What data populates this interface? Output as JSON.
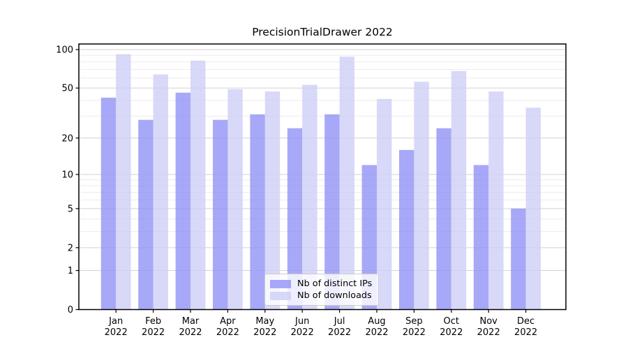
{
  "chart_data": {
    "type": "bar",
    "title": "PrecisionTrialDrawer 2022",
    "categories": [
      {
        "month": "Jan",
        "year": "2022"
      },
      {
        "month": "Feb",
        "year": "2022"
      },
      {
        "month": "Mar",
        "year": "2022"
      },
      {
        "month": "Apr",
        "year": "2022"
      },
      {
        "month": "May",
        "year": "2022"
      },
      {
        "month": "Jun",
        "year": "2022"
      },
      {
        "month": "Jul",
        "year": "2022"
      },
      {
        "month": "Aug",
        "year": "2022"
      },
      {
        "month": "Sep",
        "year": "2022"
      },
      {
        "month": "Oct",
        "year": "2022"
      },
      {
        "month": "Nov",
        "year": "2022"
      },
      {
        "month": "Dec",
        "year": "2022"
      }
    ],
    "series": [
      {
        "key": "distinct-ips",
        "name": "Nb of distinct IPs",
        "color": "rgba(146,146,246,0.8)",
        "values": [
          42,
          28,
          46,
          28,
          31,
          24,
          31,
          12,
          16,
          24,
          12,
          5
        ]
      },
      {
        "key": "downloads",
        "name": "Nb of downloads",
        "color": "rgba(206,206,246,0.8)",
        "values": [
          92,
          64,
          82,
          49,
          47,
          53,
          88,
          41,
          56,
          68,
          47,
          35
        ]
      }
    ],
    "y_axis": {
      "scale": "log1p",
      "range": [
        0,
        100
      ],
      "ticks": [
        0,
        1,
        2,
        5,
        10,
        20,
        50,
        100
      ],
      "tick_labels": [
        "0",
        "1",
        "2",
        "5",
        "10",
        "20",
        "50",
        "100"
      ],
      "minor_gridlines": [
        3,
        4,
        6,
        7,
        8,
        9,
        30,
        40,
        60,
        70,
        80,
        90
      ]
    },
    "legend": {
      "position": "lower center"
    },
    "colors": {
      "grid_major": "#d2d2d2",
      "grid_minor": "#ececec",
      "axis": "#000000",
      "text": "#000000",
      "background": "#ffffff"
    }
  }
}
